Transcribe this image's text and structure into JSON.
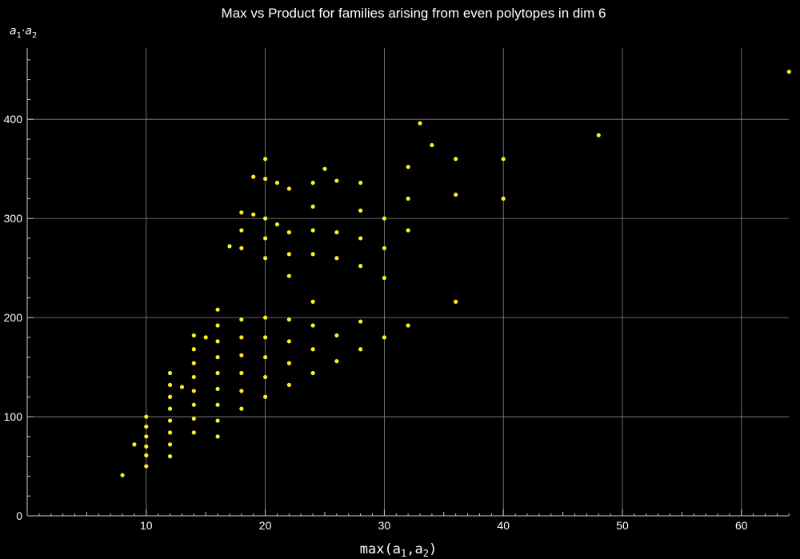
{
  "chart_data": {
    "type": "scatter",
    "title": "Max vs Product for families arising from even polytopes in dim 6",
    "xlabel_func": "max",
    "xlabel_var": "a",
    "ylabel_var": "a",
    "ylabel_dot": "·",
    "sub1": "1",
    "sub2": "2",
    "xlim": [
      0,
      65
    ],
    "ylim": [
      0,
      460
    ],
    "x_ticks": [
      10,
      20,
      30,
      40,
      50,
      60
    ],
    "y_ticks": [
      0,
      100,
      200,
      300,
      400
    ],
    "grid": true,
    "point_color": "#ffee22",
    "points": [
      [
        8,
        41
      ],
      [
        9,
        72
      ],
      [
        10,
        50
      ],
      [
        10,
        61
      ],
      [
        10,
        70
      ],
      [
        10,
        80
      ],
      [
        10,
        90
      ],
      [
        10,
        100
      ],
      [
        12,
        60
      ],
      [
        12,
        72
      ],
      [
        12,
        84
      ],
      [
        12,
        96
      ],
      [
        12,
        108
      ],
      [
        12,
        120
      ],
      [
        12,
        132
      ],
      [
        12,
        144
      ],
      [
        13,
        130
      ],
      [
        14,
        84
      ],
      [
        14,
        98
      ],
      [
        14,
        112
      ],
      [
        14,
        126
      ],
      [
        14,
        140
      ],
      [
        14,
        154
      ],
      [
        14,
        168
      ],
      [
        14,
        182
      ],
      [
        15,
        180
      ],
      [
        16,
        80
      ],
      [
        16,
        96
      ],
      [
        16,
        112
      ],
      [
        16,
        128
      ],
      [
        16,
        144
      ],
      [
        16,
        160
      ],
      [
        16,
        176
      ],
      [
        16,
        192
      ],
      [
        16,
        208
      ],
      [
        17,
        272
      ],
      [
        18,
        108
      ],
      [
        18,
        126
      ],
      [
        18,
        144
      ],
      [
        18,
        162
      ],
      [
        18,
        180
      ],
      [
        18,
        198
      ],
      [
        18,
        270
      ],
      [
        18,
        288
      ],
      [
        18,
        306
      ],
      [
        19,
        342
      ],
      [
        19,
        304
      ],
      [
        20,
        120
      ],
      [
        20,
        140
      ],
      [
        20,
        160
      ],
      [
        20,
        180
      ],
      [
        20,
        200
      ],
      [
        20,
        260
      ],
      [
        20,
        280
      ],
      [
        20,
        300
      ],
      [
        20,
        340
      ],
      [
        20,
        360
      ],
      [
        21,
        336
      ],
      [
        21,
        294
      ],
      [
        22,
        132
      ],
      [
        22,
        154
      ],
      [
        22,
        176
      ],
      [
        22,
        198
      ],
      [
        22,
        242
      ],
      [
        22,
        264
      ],
      [
        22,
        286
      ],
      [
        22,
        330
      ],
      [
        24,
        144
      ],
      [
        24,
        168
      ],
      [
        24,
        192
      ],
      [
        24,
        216
      ],
      [
        24,
        264
      ],
      [
        24,
        288
      ],
      [
        24,
        312
      ],
      [
        24,
        336
      ],
      [
        25,
        350
      ],
      [
        26,
        156
      ],
      [
        26,
        182
      ],
      [
        26,
        260
      ],
      [
        26,
        286
      ],
      [
        26,
        338
      ],
      [
        28,
        168
      ],
      [
        28,
        196
      ],
      [
        28,
        252
      ],
      [
        28,
        280
      ],
      [
        28,
        308
      ],
      [
        28,
        336
      ],
      [
        30,
        180
      ],
      [
        30,
        240
      ],
      [
        30,
        270
      ],
      [
        30,
        300
      ],
      [
        32,
        192
      ],
      [
        32,
        288
      ],
      [
        32,
        320
      ],
      [
        32,
        352
      ],
      [
        33,
        396
      ],
      [
        34,
        374
      ],
      [
        36,
        216
      ],
      [
        36,
        324
      ],
      [
        36,
        360
      ],
      [
        40,
        320
      ],
      [
        40,
        360
      ],
      [
        48,
        384
      ],
      [
        64,
        448
      ]
    ]
  }
}
